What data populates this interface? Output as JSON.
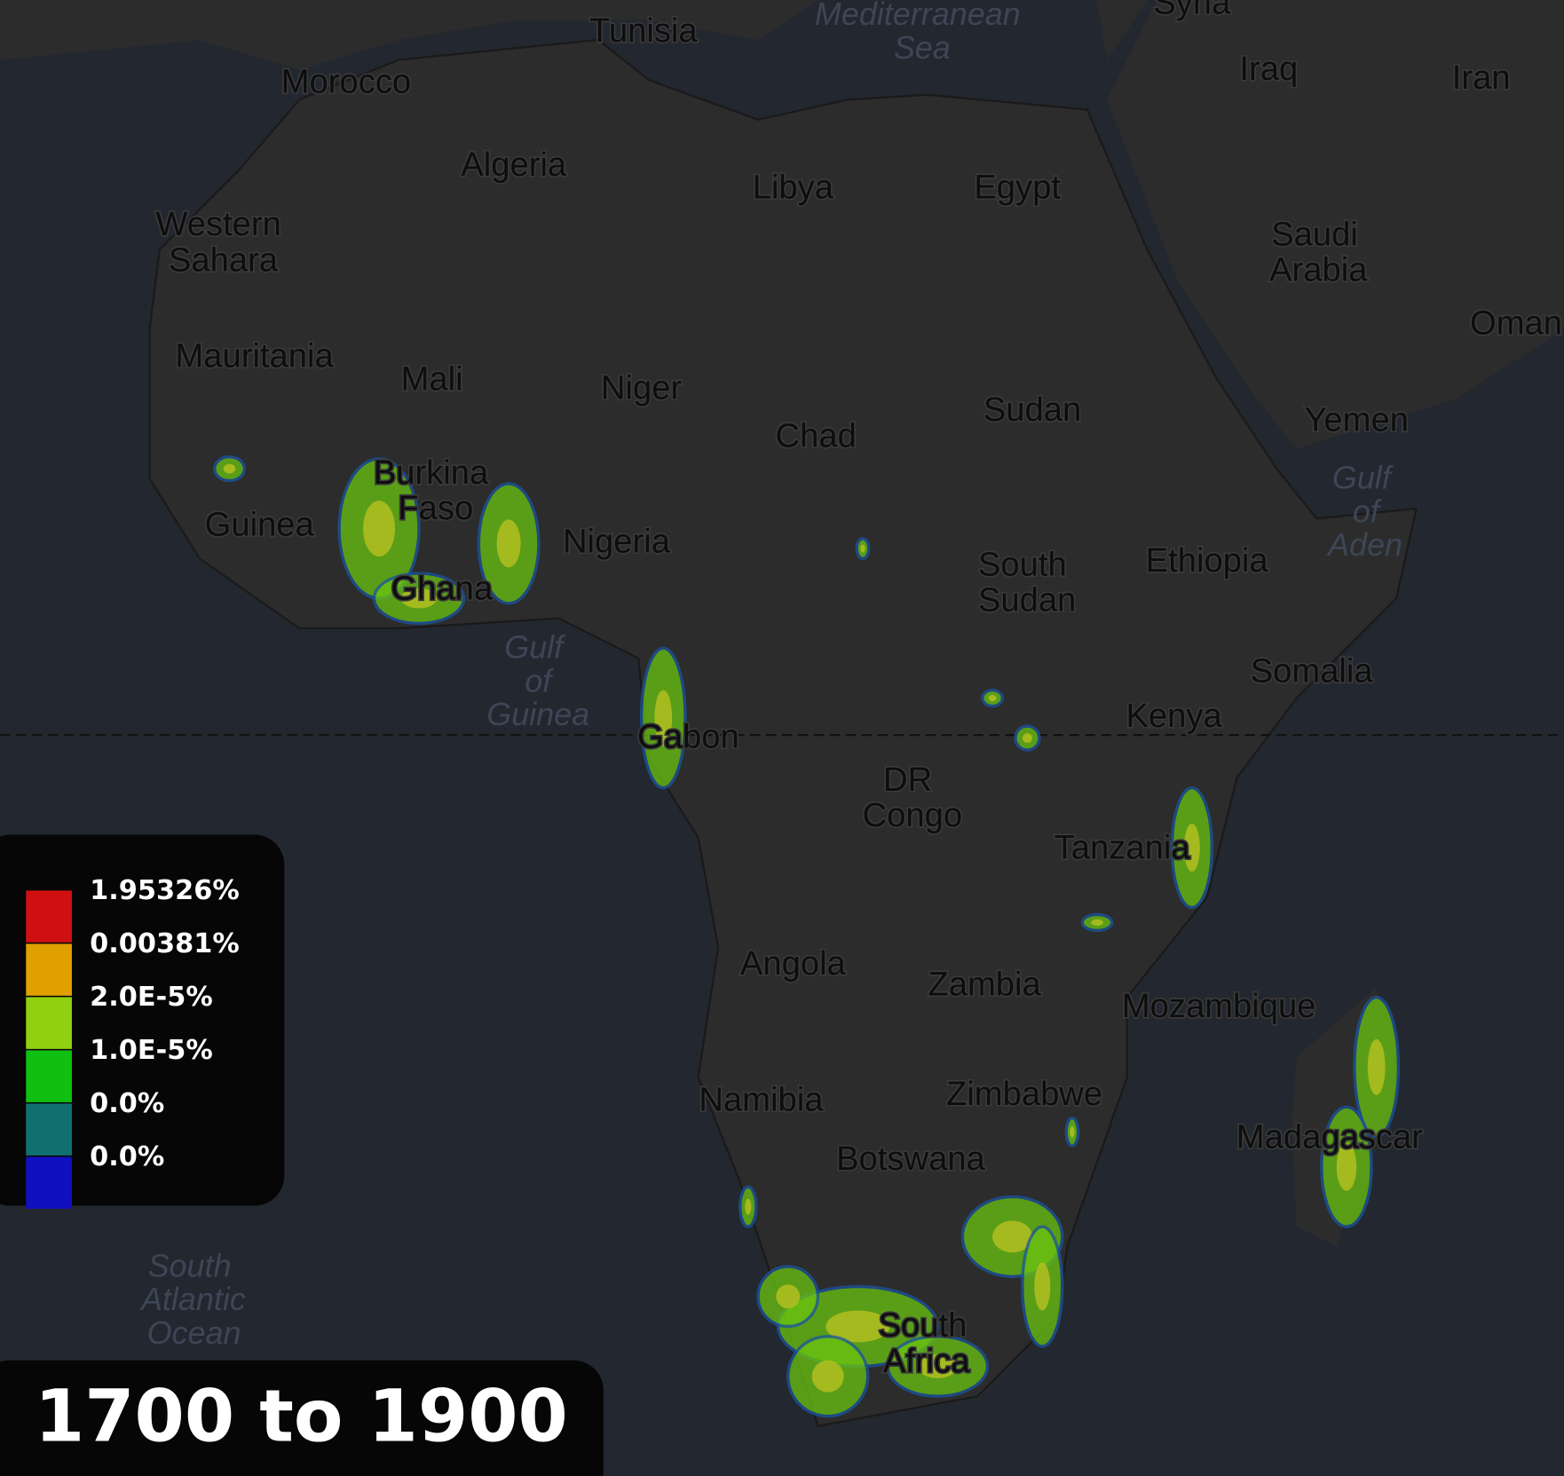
{
  "map": {
    "labels": [
      "Morocco",
      "Algeria",
      "Tunisia",
      "Libya",
      "Egypt",
      "Western Sahara",
      "Mauritania",
      "Mali",
      "Niger",
      "Chad",
      "Sudan",
      "Syria",
      "Iraq",
      "Iran",
      "Saudi Arabia",
      "Oman",
      "Yemen",
      "Burkina Faso",
      "Guinea",
      "Nigeria",
      "Ghana",
      "South Sudan",
      "Ethiopia",
      "Somalia",
      "Gabon",
      "Kenya",
      "DR Congo",
      "Tanzania",
      "Angola",
      "Zambia",
      "Mozambique",
      "Namibia",
      "Zimbabwe",
      "Botswana",
      "Madagascar",
      "South Africa"
    ],
    "seas": [
      "Mediterranean Sea",
      "Gulf of Aden",
      "Gulf of Guinea",
      "South Atlantic Ocean"
    ]
  },
  "legend": {
    "labels": [
      "1.95326%",
      "0.00381%",
      "2.0E-5%",
      "1.0E-5%",
      "0.0%",
      "0.0%"
    ],
    "colors": [
      "#d01010",
      "#e0a000",
      "#90d010",
      "#10c010",
      "#107070",
      "#1010c0"
    ]
  },
  "title": "1700 to 1900"
}
